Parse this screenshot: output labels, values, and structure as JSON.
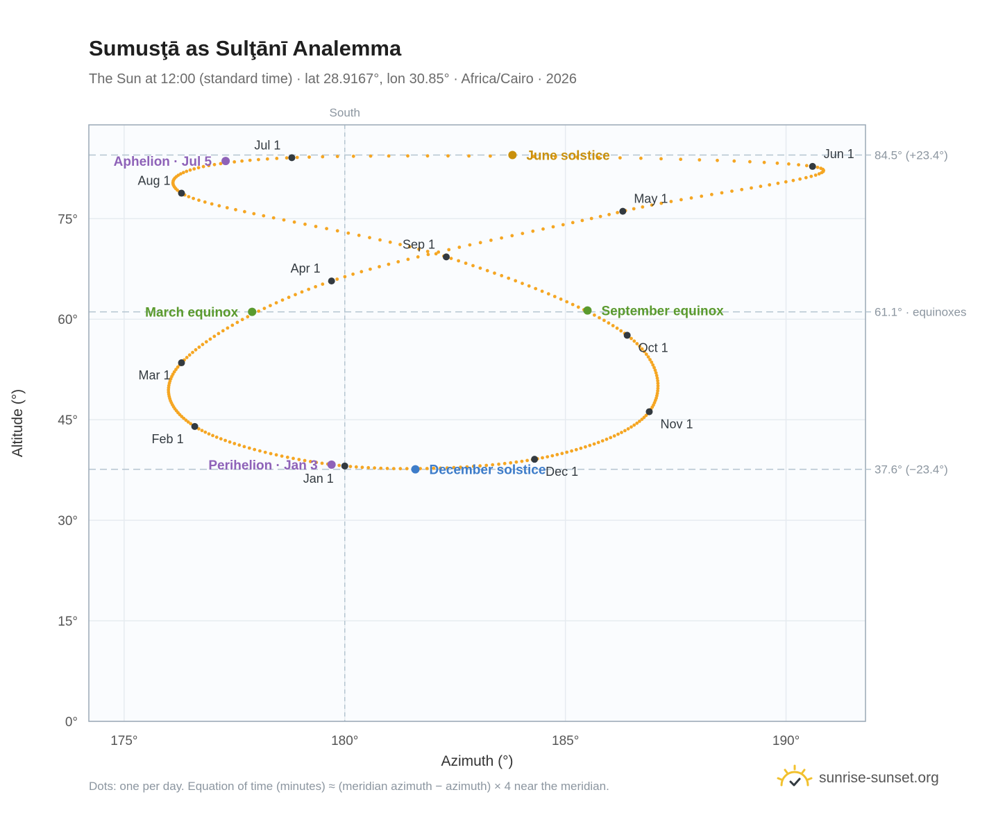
{
  "header": {
    "title": "Sumusţā as Sulţānī Analemma",
    "subtitle": "The Sun at 12:00 (standard time) · lat 28.9167°, lon 30.85° · Africa/Cairo · 2026"
  },
  "footer": {
    "note": "Dots: one per day. Equation of time (minutes) ≈ (meridian azimuth − azimuth) × 4 near the meridian.",
    "brand": "sunrise-sunset.org"
  },
  "colors": {
    "curve": "#f5a623",
    "month_dot": "#333a40",
    "solstice_june": "#c9900c",
    "solstice_december": "#3d7cc9",
    "equinox": "#5a9a2e",
    "apsis": "#8e62b8",
    "ref_line": "#b4c4d0",
    "axis": "#9aa8b5",
    "plot_bg": "#fafcfe"
  },
  "chart_data": {
    "type": "scatter",
    "title": "Sumusţā as Sulţānī Analemma",
    "xlabel": "Azimuth (°)",
    "ylabel": "Altitude (°)",
    "xlim": [
      174.2,
      191.8
    ],
    "ylim": [
      0,
      89
    ],
    "x_ticks": [
      175,
      180,
      185,
      190
    ],
    "y_ticks": [
      0,
      15,
      30,
      45,
      60,
      75
    ],
    "x_tick_labels": [
      "175°",
      "180°",
      "185°",
      "190°"
    ],
    "y_tick_labels": [
      "0°",
      "15°",
      "30°",
      "45°",
      "60°",
      "75°"
    ],
    "grid": true,
    "meridian": {
      "azimuth": 180,
      "label": "South"
    },
    "reference_lines": [
      {
        "altitude": 84.5,
        "label": "84.5° (+23.4°)"
      },
      {
        "altitude": 61.1,
        "label": "61.1° · equinoxes"
      },
      {
        "altitude": 37.6,
        "label": "37.6° (−23.4°)"
      }
    ],
    "path_anchors": [
      {
        "date": "Jan 1",
        "az": 180.0,
        "alt": 38.1
      },
      {
        "date": "Feb 1",
        "az": 176.6,
        "alt": 44.0
      },
      {
        "date": "Mar 1",
        "az": 176.3,
        "alt": 53.5
      },
      {
        "date": "Apr 1",
        "az": 179.7,
        "alt": 65.7
      },
      {
        "date": "May 1",
        "az": 186.3,
        "alt": 76.1
      },
      {
        "date": "Jun 1",
        "az": 190.6,
        "alt": 82.8
      },
      {
        "date": "Jul 1",
        "az": 178.8,
        "alt": 84.1
      },
      {
        "date": "Aug 1",
        "az": 176.3,
        "alt": 78.8
      },
      {
        "date": "Sep 1",
        "az": 182.3,
        "alt": 69.3
      },
      {
        "date": "Oct 1",
        "az": 186.4,
        "alt": 57.6
      },
      {
        "date": "Nov 1",
        "az": 186.9,
        "alt": 46.2
      },
      {
        "date": "Dec 1",
        "az": 184.3,
        "alt": 39.1
      }
    ],
    "month_markers": [
      {
        "label": "Jan 1",
        "az": 180.0,
        "alt": 38.1,
        "pos": "bl"
      },
      {
        "label": "Feb 1",
        "az": 176.6,
        "alt": 44.0,
        "pos": "bl"
      },
      {
        "label": "Mar 1",
        "az": 176.3,
        "alt": 53.5,
        "pos": "bl"
      },
      {
        "label": "Apr 1",
        "az": 179.7,
        "alt": 65.7,
        "pos": "tl"
      },
      {
        "label": "May 1",
        "az": 186.3,
        "alt": 76.1,
        "pos": "tr"
      },
      {
        "label": "Jun 1",
        "az": 190.6,
        "alt": 82.8,
        "pos": "tr"
      },
      {
        "label": "Jul 1",
        "az": 178.8,
        "alt": 84.1,
        "pos": "tl"
      },
      {
        "label": "Aug 1",
        "az": 176.3,
        "alt": 78.8,
        "pos": "tl"
      },
      {
        "label": "Sep 1",
        "az": 182.3,
        "alt": 69.3,
        "pos": "tl"
      },
      {
        "label": "Oct 1",
        "az": 186.4,
        "alt": 57.6,
        "pos": "br"
      },
      {
        "label": "Nov 1",
        "az": 186.9,
        "alt": 46.2,
        "pos": "br"
      },
      {
        "label": "Dec 1",
        "az": 184.3,
        "alt": 39.1,
        "pos": "br"
      }
    ],
    "events": [
      {
        "label": "June solstice",
        "az": 183.8,
        "alt": 84.5,
        "kind": "solstice_june",
        "side": "right"
      },
      {
        "label": "December solstice",
        "az": 181.6,
        "alt": 37.6,
        "kind": "solstice_december",
        "side": "right"
      },
      {
        "label": "March equinox",
        "az": 177.9,
        "alt": 61.1,
        "kind": "equinox",
        "side": "left"
      },
      {
        "label": "September equinox",
        "az": 185.5,
        "alt": 61.3,
        "kind": "equinox",
        "side": "right"
      },
      {
        "label": "Aphelion · Jul 5",
        "az": 177.3,
        "alt": 83.6,
        "kind": "apsis",
        "side": "left"
      },
      {
        "label": "Perihelion · Jan 3",
        "az": 179.7,
        "alt": 38.3,
        "kind": "apsis",
        "side": "left"
      }
    ]
  }
}
